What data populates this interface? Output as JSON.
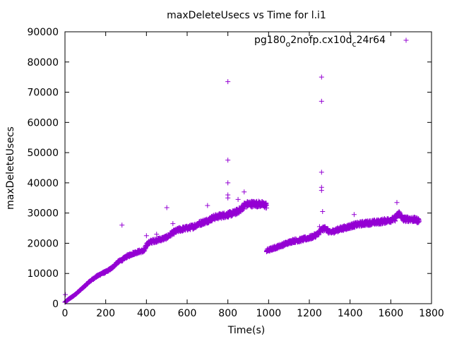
{
  "chart_data": {
    "type": "scatter",
    "title": "maxDeleteUsecs vs Time for l.i1",
    "xlabel": "Time(s)",
    "ylabel": "maxDeleteUsecs",
    "xlim": [
      0,
      1800
    ],
    "ylim": [
      0,
      90000
    ],
    "xticks": [
      0,
      200,
      400,
      600,
      800,
      1000,
      1200,
      1400,
      1600,
      1800
    ],
    "yticks": [
      0,
      10000,
      20000,
      30000,
      40000,
      50000,
      60000,
      70000,
      80000,
      90000
    ],
    "grid": false,
    "legend_position": "top-right",
    "color": "#9400d3",
    "series": [
      {
        "name": "pg180_o2nofp.cx10d_c24r64",
        "legend_parts": {
          "base": "pg180",
          "sub1": "o",
          "mid": "2nofp.cx10d",
          "sub2": "c",
          "tail": "24r64"
        },
        "segments": [
          {
            "x": [
              0,
              20,
              40,
              60,
              80,
              100,
              120,
              150,
              180,
              200,
              230,
              260,
              280,
              300,
              330,
              360,
              390,
              400,
              420,
              450,
              480,
              500,
              530,
              560,
              600,
              630,
              660,
              700,
              730,
              760,
              800,
              830,
              860,
              880,
              900,
              930,
              960,
              990
            ],
            "y": [
              500,
              1600,
              2500,
              3600,
              4800,
              6000,
              7300,
              8800,
              10000,
              10500,
              11800,
              13800,
              14500,
              15500,
              16500,
              17200,
              17500,
              19500,
              20500,
              21000,
              21500,
              22000,
              23500,
              24500,
              25000,
              25500,
              26500,
              27500,
              28500,
              29000,
              29500,
              30000,
              31000,
              32500,
              33000,
              33000,
              33000,
              32500
            ]
          },
          {
            "x": [
              990,
              1010,
              1050,
              1090,
              1120,
              1150,
              1180,
              1210,
              1240,
              1260,
              1280,
              1300,
              1340,
              1380,
              1420,
              1460,
              1500,
              1540,
              1580,
              1620,
              1640,
              1660,
              1700,
              1740
            ],
            "y": [
              17500,
              18000,
              19000,
              20000,
              20800,
              21000,
              21500,
              22000,
              23000,
              24500,
              25000,
              23500,
              24500,
              25200,
              26000,
              26500,
              26800,
              27000,
              27500,
              28000,
              30000,
              28000,
              28000,
              27500
            ]
          }
        ],
        "outliers": [
          {
            "x": 2,
            "y": 3000
          },
          {
            "x": 280,
            "y": 26000
          },
          {
            "x": 400,
            "y": 22500
          },
          {
            "x": 450,
            "y": 23000
          },
          {
            "x": 500,
            "y": 31800
          },
          {
            "x": 530,
            "y": 26500
          },
          {
            "x": 700,
            "y": 32500
          },
          {
            "x": 800,
            "y": 73500
          },
          {
            "x": 800,
            "y": 47500
          },
          {
            "x": 800,
            "y": 40000
          },
          {
            "x": 800,
            "y": 36000
          },
          {
            "x": 800,
            "y": 35000
          },
          {
            "x": 850,
            "y": 34500
          },
          {
            "x": 880,
            "y": 37000
          },
          {
            "x": 1250,
            "y": 25500
          },
          {
            "x": 1260,
            "y": 75000
          },
          {
            "x": 1260,
            "y": 67000
          },
          {
            "x": 1260,
            "y": 43500
          },
          {
            "x": 1260,
            "y": 38500
          },
          {
            "x": 1260,
            "y": 37500
          },
          {
            "x": 1265,
            "y": 30500
          },
          {
            "x": 1420,
            "y": 29500
          },
          {
            "x": 1630,
            "y": 33500
          },
          {
            "x": 1670,
            "y": 28500
          }
        ]
      }
    ]
  }
}
